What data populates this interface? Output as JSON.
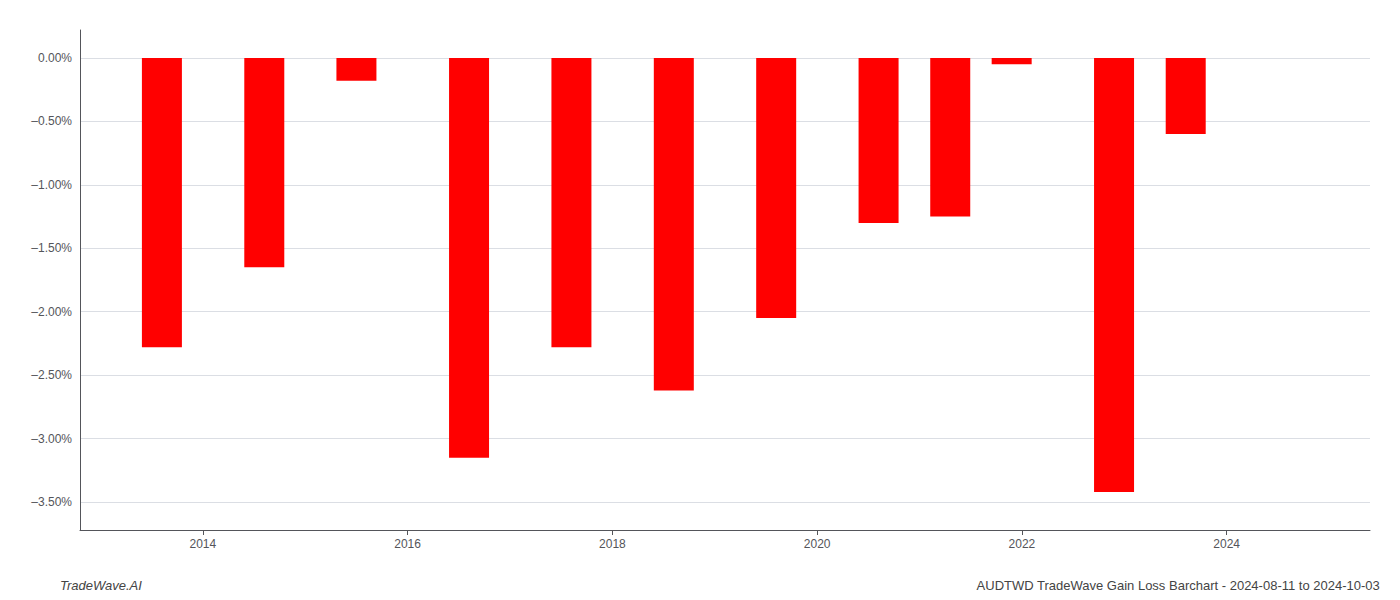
{
  "chart_data": {
    "type": "bar",
    "x": [
      2013.6,
      2014.6,
      2015.5,
      2016.6,
      2017.6,
      2018.6,
      2019.6,
      2020.6,
      2021.3,
      2021.9,
      2022.9,
      2023.6
    ],
    "values": [
      -2.28,
      -1.65,
      -0.18,
      -3.15,
      -2.28,
      -2.62,
      -2.05,
      -1.3,
      -1.25,
      -0.05,
      -3.42,
      -0.6
    ],
    "color": "#ff0000",
    "xlim": [
      2012.8,
      2025.4
    ],
    "xticks": [
      2014,
      2016,
      2018,
      2020,
      2022,
      2024
    ],
    "ylim": [
      -3.72,
      0.22
    ],
    "yticks": [
      {
        "value": 0.0,
        "label": "0.00%"
      },
      {
        "value": -0.5,
        "label": "–0.50%"
      },
      {
        "value": -1.0,
        "label": "–1.00%"
      },
      {
        "value": -1.5,
        "label": "–1.50%"
      },
      {
        "value": -2.0,
        "label": "–2.00%"
      },
      {
        "value": -2.5,
        "label": "–2.50%"
      },
      {
        "value": -3.0,
        "label": "–3.00%"
      },
      {
        "value": -3.5,
        "label": "–3.50%"
      }
    ],
    "grid": true,
    "annotations": [
      "TradeWave.AI",
      "AUDTWD TradeWave Gain Loss Barchart - 2024-08-11 to 2024-10-03"
    ]
  }
}
